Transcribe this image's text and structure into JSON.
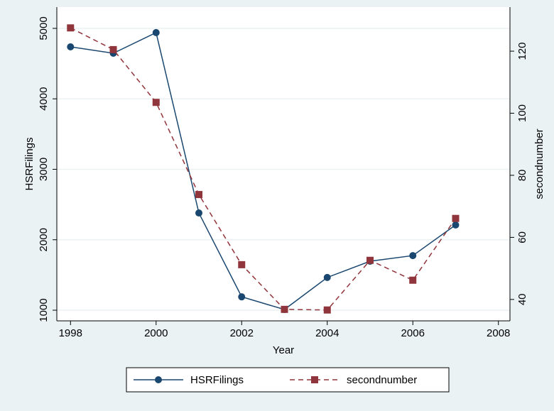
{
  "chart_data": {
    "type": "line",
    "x_label": "Year",
    "y_label": "HSRFilings",
    "y2_label": "secondnumber",
    "x": [
      1998,
      1999,
      2000,
      2001,
      2002,
      2003,
      2004,
      2005,
      2006,
      2007
    ],
    "series": [
      {
        "name": "HSRFilings",
        "color": "#1a476f",
        "marker": "circle",
        "dash": false,
        "values": [
          4738,
          4647,
          4940,
          2380,
          1190,
          1010,
          1465,
          1695,
          1775,
          2210
        ]
      },
      {
        "name": "secondnumber",
        "color": "#90353b",
        "marker": "square",
        "dash": true,
        "axis": "y2",
        "values": [
          127.5,
          120.5,
          103.5,
          73.8,
          51.2,
          36.8,
          36.6,
          52.6,
          46.2,
          66.1
        ]
      }
    ],
    "xlim": [
      1997.68,
      2008.27
    ],
    "xticks": [
      1998,
      2000,
      2002,
      2004,
      2006,
      2008
    ],
    "ylim": [
      849,
      5302
    ],
    "yticks": [
      1000,
      2000,
      3000,
      4000,
      5000
    ],
    "y2lim": [
      33.1,
      134.2
    ],
    "y2ticks": [
      40,
      60,
      80,
      100,
      120
    ],
    "grid": true,
    "legend": "bottom"
  }
}
